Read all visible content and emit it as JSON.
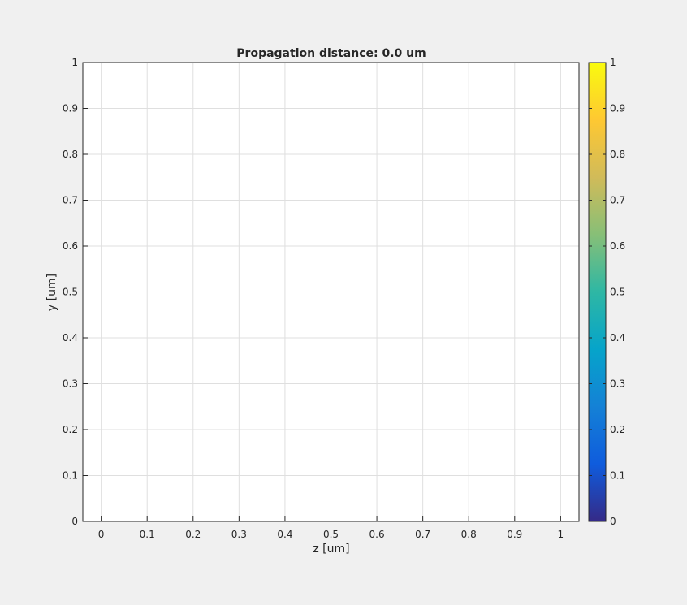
{
  "chart_data": {
    "type": "heatmap",
    "title": "Propagation distance: 0.0 um",
    "xlabel": "z [um]",
    "ylabel": "y [um]",
    "xlim": [
      -0.04,
      1.04
    ],
    "ylim": [
      0,
      1
    ],
    "x_ticks": [
      0,
      0.1,
      0.2,
      0.3,
      0.4,
      0.5,
      0.6,
      0.7,
      0.8,
      0.9,
      1
    ],
    "x_tick_labels": [
      "0",
      "0.1",
      "0.2",
      "0.3",
      "0.4",
      "0.5",
      "0.6",
      "0.7",
      "0.8",
      "0.9",
      "1"
    ],
    "y_ticks": [
      0,
      0.1,
      0.2,
      0.3,
      0.4,
      0.5,
      0.6,
      0.7,
      0.8,
      0.9,
      1
    ],
    "y_tick_labels": [
      "0",
      "0.1",
      "0.2",
      "0.3",
      "0.4",
      "0.5",
      "0.6",
      "0.7",
      "0.8",
      "0.9",
      "1"
    ],
    "grid": true,
    "values": [],
    "colorbar": {
      "colormap": "parula",
      "clim": [
        0,
        1
      ],
      "ticks": [
        0,
        0.1,
        0.2,
        0.3,
        0.4,
        0.5,
        0.6,
        0.7,
        0.8,
        0.9,
        1
      ],
      "tick_labels": [
        "0",
        "0.1",
        "0.2",
        "0.3",
        "0.4",
        "0.5",
        "0.6",
        "0.7",
        "0.8",
        "0.9",
        "1"
      ],
      "colors": [
        "#352a87",
        "#0f5cdd",
        "#1481d6",
        "#06a4ca",
        "#2eb7a4",
        "#87bf77",
        "#d1bb59",
        "#fec832",
        "#f9fb0e"
      ]
    },
    "colors": {
      "figure_bg": "#f0f0f0",
      "axes_bg": "#ffffff",
      "grid": "#dfdfdf",
      "axis": "#262626"
    }
  }
}
